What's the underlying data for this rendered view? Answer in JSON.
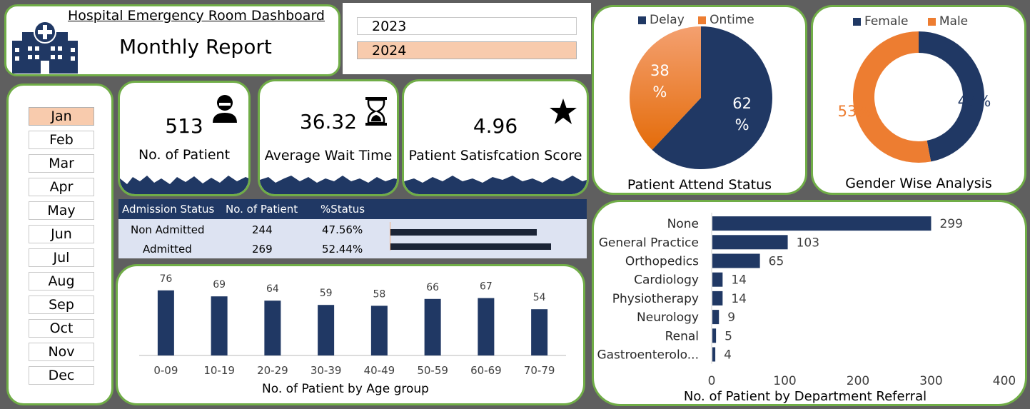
{
  "header": {
    "title": "Hospital Emergency Room Dashboard",
    "subtitle": "Monthly Report",
    "icon": "hospital-icon"
  },
  "years": {
    "items": [
      {
        "label": "2023",
        "selected": false
      },
      {
        "label": "2024",
        "selected": true
      }
    ]
  },
  "months": {
    "items": [
      {
        "label": "Jan",
        "selected": true
      },
      {
        "label": "Feb",
        "selected": false
      },
      {
        "label": "Mar",
        "selected": false
      },
      {
        "label": "Apr",
        "selected": false
      },
      {
        "label": "May",
        "selected": false
      },
      {
        "label": "Jun",
        "selected": false
      },
      {
        "label": "Jul",
        "selected": false
      },
      {
        "label": "Aug",
        "selected": false
      },
      {
        "label": "Sep",
        "selected": false
      },
      {
        "label": "Oct",
        "selected": false
      },
      {
        "label": "Nov",
        "selected": false
      },
      {
        "label": "Dec",
        "selected": false
      }
    ]
  },
  "kpis": [
    {
      "value": "513",
      "label": "No. of Patient",
      "icon": "patient-icon"
    },
    {
      "value": "36.32",
      "label": "Average Wait Time",
      "icon": "hourglass-icon"
    },
    {
      "value": "4.96",
      "label": "Patient Satisfcation Score",
      "icon": "star-icon"
    }
  ],
  "admission": {
    "headers": [
      "Admission Status",
      "No. of Patient",
      "%Status"
    ],
    "rows": [
      {
        "status": "Non Admitted",
        "count": "244",
        "pct": "47.56%",
        "share": 0.4756
      },
      {
        "status": "Admitted",
        "count": "269",
        "pct": "52.44%",
        "share": 0.5244
      }
    ]
  },
  "colors": {
    "navy": "#203864",
    "orange": "#ed7d31",
    "border_green": "#70ad47",
    "selected": "#f8cbad"
  },
  "chart_data": [
    {
      "type": "pie",
      "title": "Patient Attend Status",
      "legend_position": "top",
      "categories": [
        "Delay",
        "Ontime"
      ],
      "values": [
        62,
        38
      ],
      "labels": [
        "62\n%",
        "38\n%"
      ]
    },
    {
      "type": "pie",
      "title": "Gender Wise Analysis",
      "legend_position": "top",
      "categories": [
        "Female",
        "Male"
      ],
      "values": [
        47,
        53
      ],
      "labels": [
        "47%",
        "53%"
      ]
    },
    {
      "type": "bar",
      "title": "No. of Patient by Age group",
      "categories": [
        "0-09",
        "10-19",
        "20-29",
        "30-39",
        "40-49",
        "50-59",
        "60-69",
        "70-79"
      ],
      "values": [
        76,
        69,
        64,
        59,
        58,
        66,
        67,
        54
      ],
      "ylim": [
        0,
        100
      ]
    },
    {
      "type": "bar",
      "orientation": "horizontal",
      "title": "No. of Patient by Department Referral",
      "categories": [
        "None",
        "General Practice",
        "Orthopedics",
        "Cardiology",
        "Physiotherapy",
        "Neurology",
        "Renal",
        "Gastroenterolo..."
      ],
      "values": [
        299,
        103,
        65,
        14,
        14,
        9,
        5,
        4
      ],
      "xlim": [
        0,
        400
      ],
      "xticks": [
        "0",
        "100",
        "200",
        "300",
        "400"
      ]
    }
  ]
}
